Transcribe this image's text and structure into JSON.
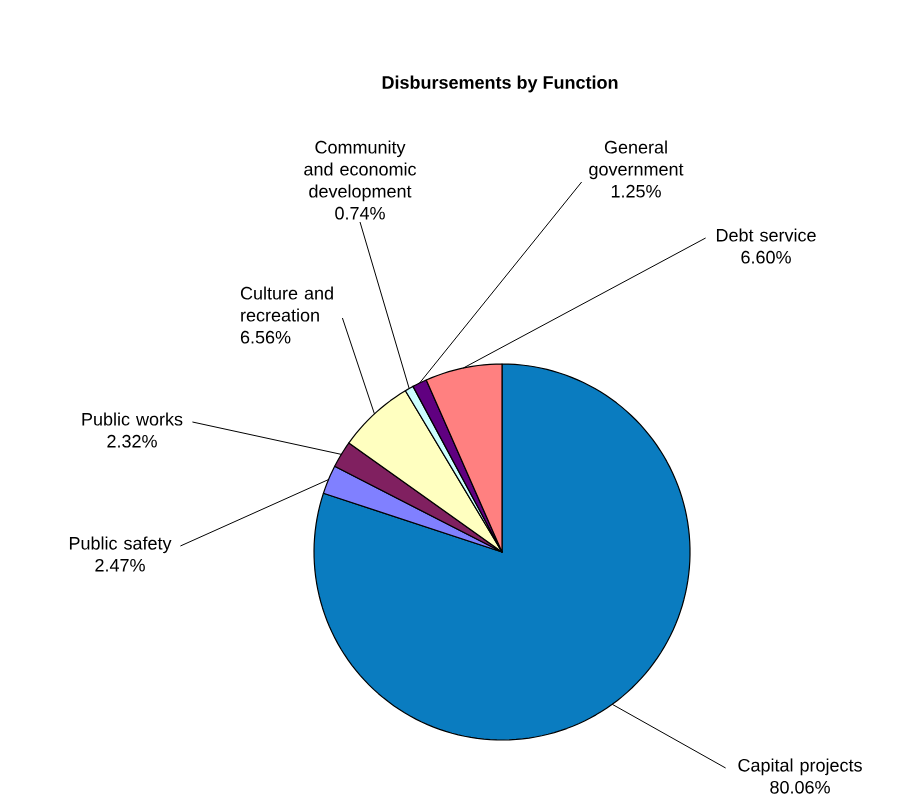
{
  "chart_data": {
    "type": "pie",
    "title": "Disbursements  by Function",
    "categories": [
      "Capital projects",
      "Public safety",
      "Public works",
      "Culture and recreation",
      "Community and economic development",
      "General government",
      "Debt service"
    ],
    "values": [
      80.06,
      2.47,
      2.32,
      6.56,
      0.74,
      1.25,
      6.6
    ],
    "value_labels": [
      "80.06%",
      "2.47%",
      "2.32%",
      "6.56%",
      "0.74%",
      "1.25%",
      "6.60%"
    ],
    "colors": [
      "#0a7cc0",
      "#8080ff",
      "#802060",
      "#ffffc0",
      "#ccffff",
      "#600080",
      "#ff8080"
    ]
  }
}
